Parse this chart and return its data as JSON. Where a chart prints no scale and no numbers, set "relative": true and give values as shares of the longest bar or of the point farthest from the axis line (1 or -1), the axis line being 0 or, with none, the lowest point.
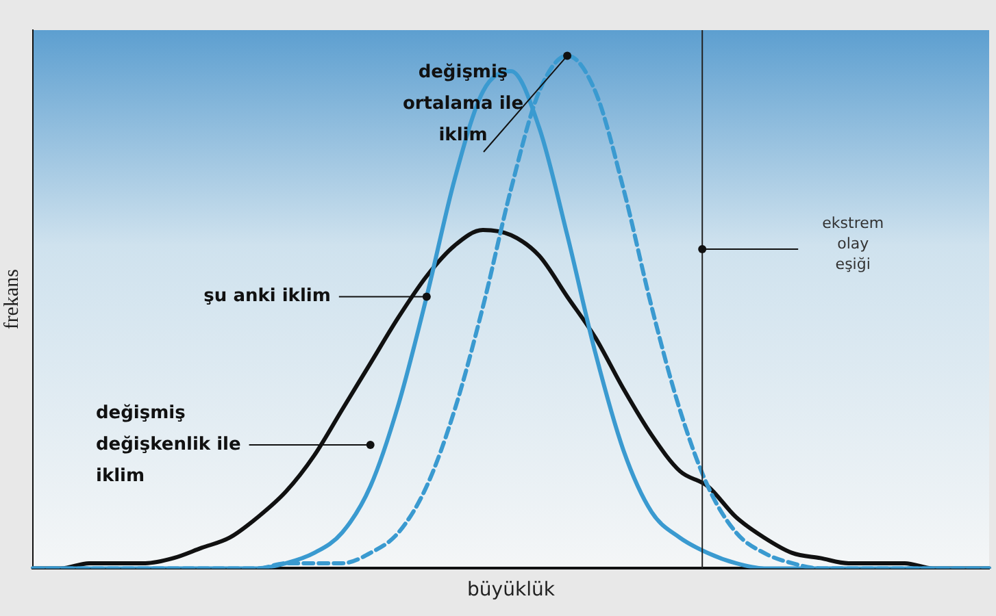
{
  "chart_data": {
    "type": "line",
    "relative": true,
    "xlabel": "büyüklük",
    "ylabel": "frekans",
    "categories": [
      null,
      null,
      null,
      null,
      null,
      null,
      null,
      null,
      null,
      null,
      null,
      null,
      null,
      null,
      null,
      null,
      null,
      null,
      null,
      null,
      null,
      null,
      null,
      null,
      null,
      null,
      null,
      null,
      null,
      null,
      null,
      null,
      null,
      null,
      null
    ],
    "series": [
      {
        "name": "şu anki iklim",
        "color": "#3a9ad0",
        "values": [
          0,
          0,
          0,
          0,
          0,
          0,
          0,
          0,
          0,
          0.01,
          0.03,
          0.07,
          0.16,
          0.32,
          0.53,
          0.76,
          0.93,
          0.97,
          0.86,
          0.65,
          0.42,
          0.23,
          0.11,
          0.06,
          0.03,
          0.01,
          0,
          0,
          0,
          0,
          0,
          0,
          0,
          0,
          0
        ]
      },
      {
        "name": "değişmiş ortalama ile iklim",
        "color": "#3a9ad0",
        "line_style": "dashed",
        "values": [
          0,
          0,
          0,
          0,
          0,
          0,
          0,
          0,
          0,
          0.01,
          0.01,
          0.01,
          0.03,
          0.07,
          0.16,
          0.31,
          0.51,
          0.74,
          0.93,
          1,
          0.93,
          0.74,
          0.51,
          0.31,
          0.16,
          0.07,
          0.03,
          0.01,
          0,
          0,
          0,
          0,
          0,
          0,
          0
        ]
      },
      {
        "name": "değişmiş değişkenlik ile iklim",
        "color": "#111111",
        "values": [
          0,
          0,
          0.01,
          0.01,
          0.01,
          0.02,
          0.04,
          0.06,
          0.1,
          0.15,
          0.22,
          0.31,
          0.4,
          0.49,
          0.57,
          0.63,
          0.66,
          0.65,
          0.61,
          0.53,
          0.45,
          0.35,
          0.26,
          0.19,
          0.16,
          0.1,
          0.06,
          0.03,
          0.02,
          0.01,
          0.01,
          0.01,
          0,
          0,
          0
        ]
      }
    ],
    "annotations": [
      "ekstrem olay eşiği"
    ],
    "marker": "none",
    "line_style": "solid",
    "grid": false
  }
}
